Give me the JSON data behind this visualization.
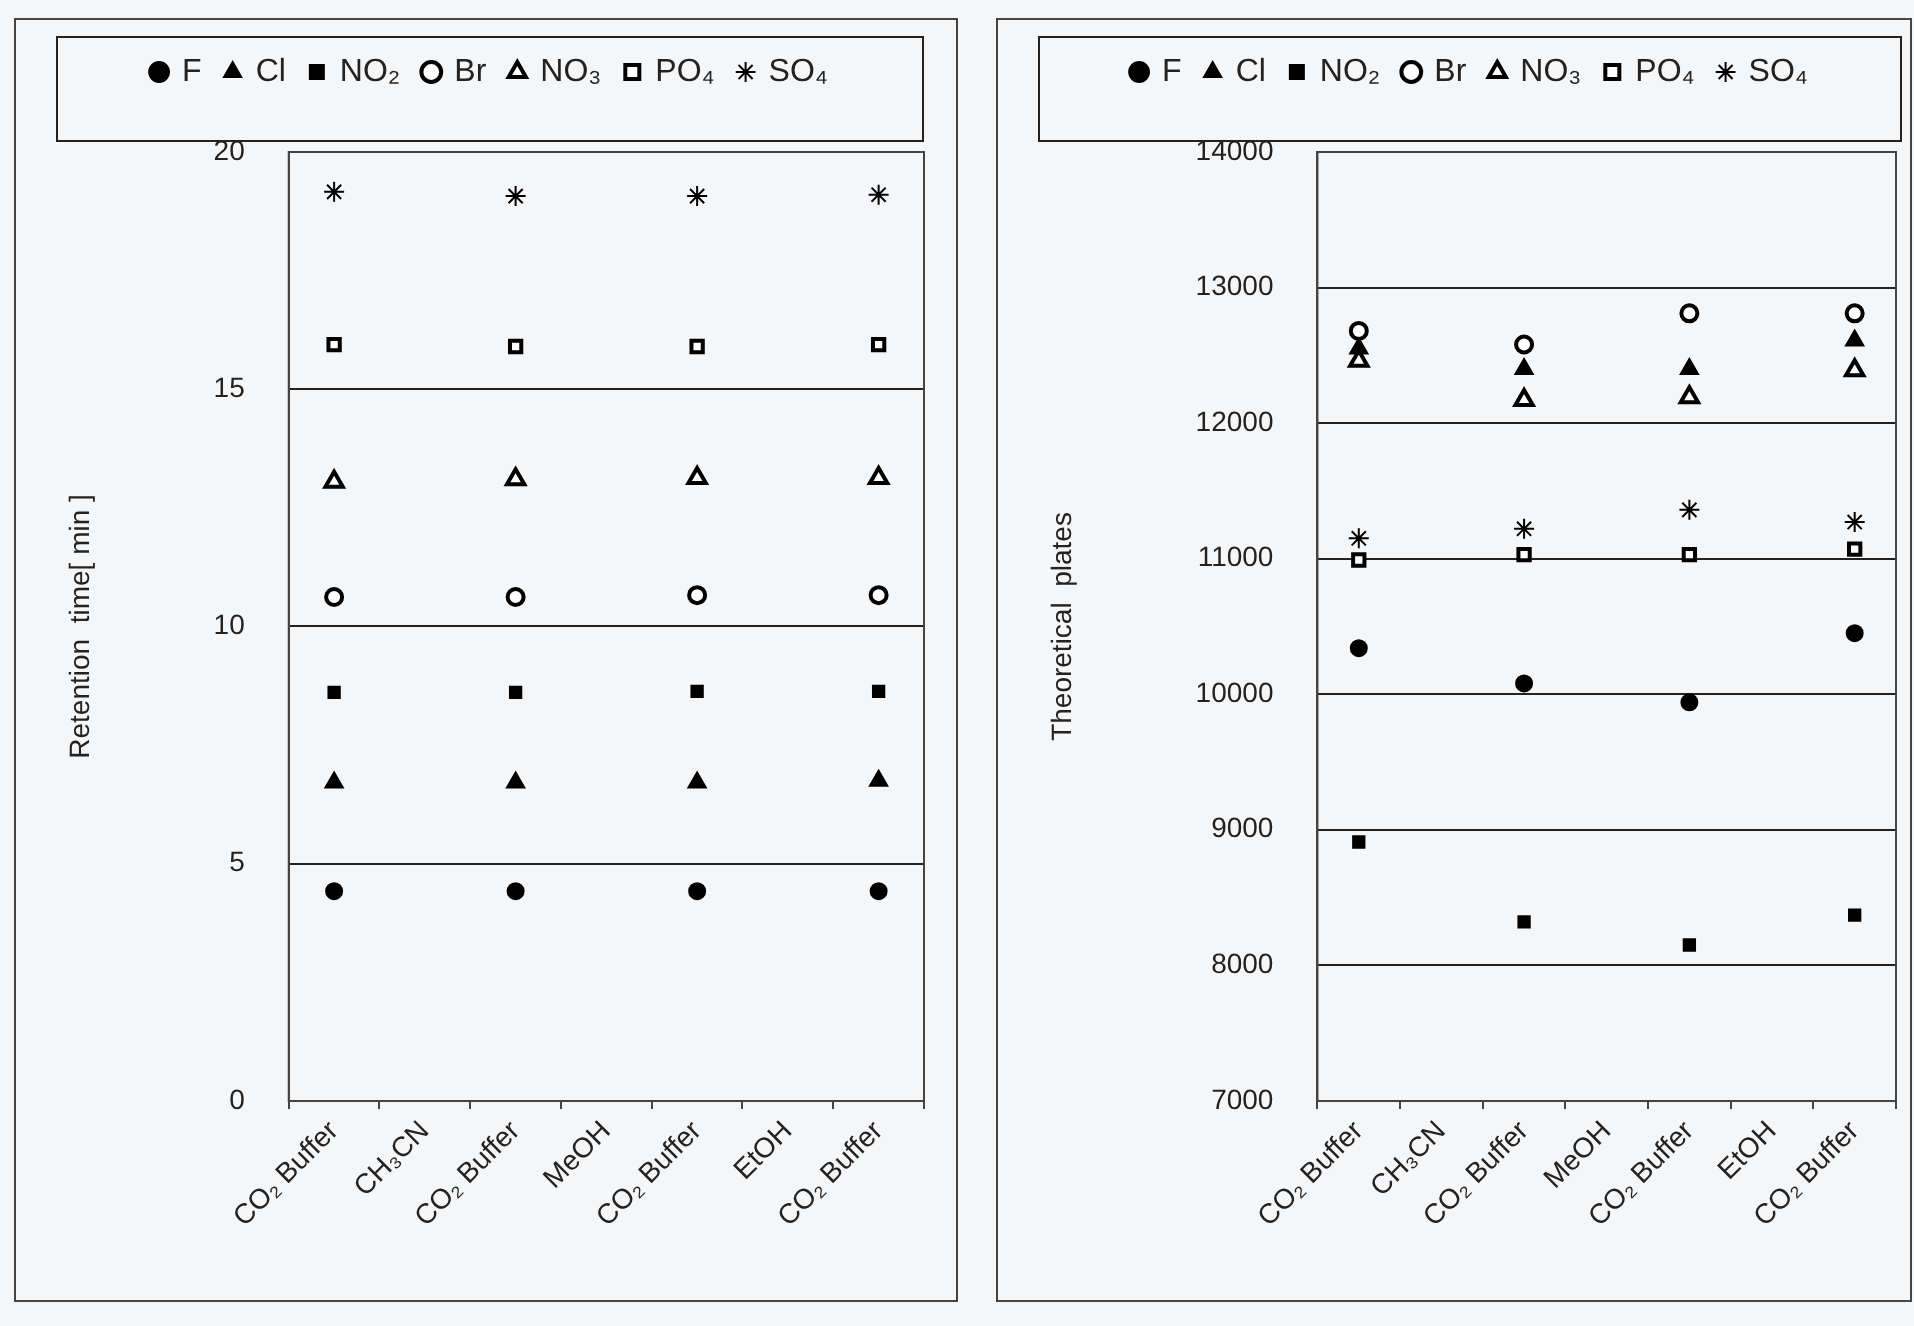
{
  "chart_data": [
    {
      "type": "scatter",
      "ylabel": "Retention  time[ min ]",
      "categories": [
        "CO₂ Buffer",
        "CH₃CN",
        "CO₂ Buffer",
        "MeOH",
        "CO₂ Buffer",
        "EtOH",
        "CO₂ Buffer"
      ],
      "ylim": [
        0,
        20
      ],
      "yticks": [
        0,
        5,
        10,
        15,
        20
      ],
      "grid": "y",
      "legend": "top",
      "series": [
        {
          "name": "F",
          "color": "#000000",
          "marker": "circle",
          "values": [
            4.42,
            null,
            4.42,
            null,
            4.42,
            null,
            4.42
          ]
        },
        {
          "name": "Cl",
          "color": "#000000",
          "marker": "triangle",
          "values": [
            6.71,
            null,
            6.71,
            null,
            6.71,
            null,
            6.75
          ]
        },
        {
          "name": "NO₂",
          "color": "#000000",
          "marker": "square",
          "values": [
            8.61,
            null,
            8.61,
            null,
            8.63,
            null,
            8.63
          ]
        },
        {
          "name": "Br",
          "color": "#000000",
          "marker": "circle-open",
          "values": [
            10.62,
            null,
            10.62,
            null,
            10.66,
            null,
            10.66
          ]
        },
        {
          "name": "NO₃",
          "color": "#000000",
          "marker": "triangle-open",
          "values": [
            13.05,
            null,
            13.1,
            null,
            13.13,
            null,
            13.13
          ]
        },
        {
          "name": "PO₄",
          "color": "#000000",
          "marker": "square-open",
          "values": [
            15.94,
            null,
            15.9,
            null,
            15.9,
            null,
            15.94
          ]
        },
        {
          "name": "SO₄",
          "color": "#000000",
          "marker": "cross",
          "values": [
            19.16,
            null,
            19.07,
            null,
            19.07,
            null,
            19.1
          ]
        }
      ]
    },
    {
      "type": "scatter",
      "ylabel": "Theoretical  plates",
      "categories": [
        "CO₂ Buffer",
        "CH₃CN",
        "CO₂ Buffer",
        "MeOH",
        "CO₂ Buffer",
        "EtOH",
        "CO₂ Buffer"
      ],
      "ylim": [
        7000,
        14000
      ],
      "yticks": [
        7000,
        8000,
        9000,
        10000,
        11000,
        12000,
        13000,
        14000
      ],
      "grid": "y",
      "legend": "top",
      "series": [
        {
          "name": "F",
          "color": "#000000",
          "marker": "circle",
          "values": [
            10340,
            null,
            10080,
            null,
            9940,
            null,
            10450
          ]
        },
        {
          "name": "Cl",
          "color": "#000000",
          "marker": "triangle",
          "values": [
            12550,
            null,
            12400,
            null,
            12400,
            null,
            12610
          ]
        },
        {
          "name": "NO₂",
          "color": "#000000",
          "marker": "square",
          "values": [
            8910,
            null,
            8320,
            null,
            8150,
            null,
            8370
          ]
        },
        {
          "name": "Br",
          "color": "#000000",
          "marker": "circle-open",
          "values": [
            12680,
            null,
            12580,
            null,
            12810,
            null,
            12810
          ]
        },
        {
          "name": "NO₃",
          "color": "#000000",
          "marker": "triangle-open",
          "values": [
            12460,
            null,
            12170,
            null,
            12190,
            null,
            12390
          ]
        },
        {
          "name": "PO₄",
          "color": "#000000",
          "marker": "square-open",
          "values": [
            10990,
            null,
            11030,
            null,
            11030,
            null,
            11070
          ]
        },
        {
          "name": "SO₄",
          "color": "#000000",
          "marker": "cross",
          "values": [
            11150,
            null,
            11220,
            null,
            11360,
            null,
            11270
          ]
        }
      ]
    }
  ]
}
